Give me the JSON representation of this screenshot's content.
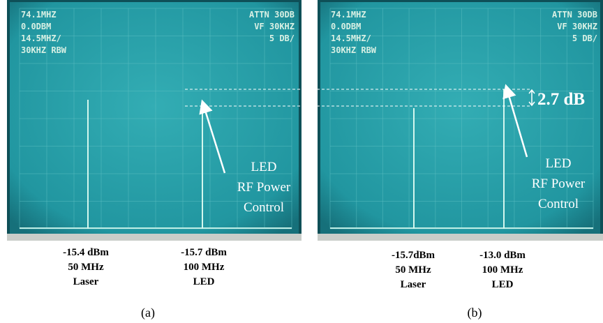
{
  "panels": [
    {
      "screen_left": [
        "74.1MHZ",
        "0.0DBM",
        "14.5MHZ/",
        "30KHZ RBW"
      ],
      "screen_right": [
        "ATTN 30DB",
        "VF 30KHZ",
        "5 DB/"
      ],
      "annotation": [
        "LED",
        "RF Power",
        "Control"
      ],
      "signals": [
        [
          "-15.4 dBm",
          "50 MHz",
          "Laser"
        ],
        [
          "-15.7 dBm",
          "100 MHz",
          "LED"
        ]
      ],
      "caption": "(a)"
    },
    {
      "screen_left": [
        "74.1MHZ",
        "0.0DBM",
        "14.5MHZ/",
        "30KHZ RBW"
      ],
      "screen_right": [
        "ATTN 30DB",
        "VF 30KHZ",
        "5 DB/"
      ],
      "annotation": [
        "LED",
        "RF Power",
        "Control"
      ],
      "difference": "2.7 dB",
      "signals": [
        [
          "-15.7dBm",
          "50 MHz",
          "Laser"
        ],
        [
          "-13.0 dBm",
          "100 MHz",
          "LED"
        ]
      ],
      "caption": "(b)"
    }
  ]
}
